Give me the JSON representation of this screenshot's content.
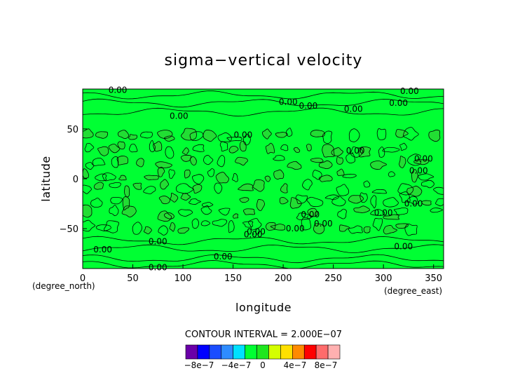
{
  "chart_data": {
    "type": "heatmap",
    "title": "sigma−vertical velocity",
    "xlabel": "longitude",
    "ylabel": "latitude",
    "x_unit": "(degree_east)",
    "y_unit": "(degree_north)",
    "xlim": [
      0,
      360
    ],
    "ylim": [
      -90,
      90
    ],
    "x_ticks": [
      "0",
      "50",
      "100",
      "150",
      "200",
      "250",
      "300",
      "350"
    ],
    "x_tick_values": [
      0,
      50,
      100,
      150,
      200,
      250,
      300,
      350
    ],
    "y_ticks": [
      "50",
      "0",
      "−50"
    ],
    "y_tick_values": [
      50,
      0,
      -50
    ],
    "contour_interval_text": "CONTOUR INTERVAL = 2.000E−07",
    "contour_level_label": "0.00",
    "fill_color": "#00ff33",
    "fill_color_alt": "#22dd33",
    "colorbar": {
      "colors": [
        "#6a00a8",
        "#0000ff",
        "#1a4dff",
        "#2e8cff",
        "#00e0ff",
        "#00ff33",
        "#1ee61e",
        "#d4ff00",
        "#ffe000",
        "#ff8a00",
        "#ff0000",
        "#ff6b6b",
        "#ffb0b0"
      ],
      "tick_labels": [
        "−8e−7",
        "−4e−7",
        "0",
        "4e−7",
        "8e−7"
      ]
    }
  }
}
